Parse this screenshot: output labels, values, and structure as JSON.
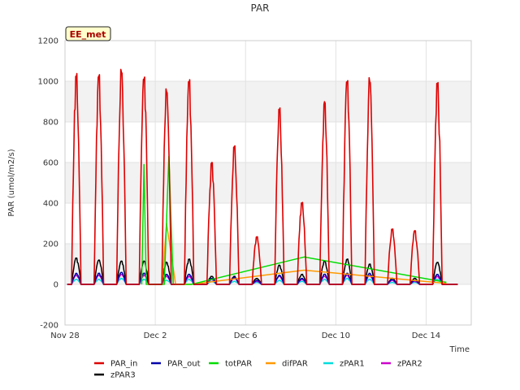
{
  "chart_data": {
    "type": "line",
    "title": "PAR",
    "xlabel": "Time",
    "ylabel": "PAR (umol/m2/s)",
    "station_badge": "EE_met",
    "xlim": [
      0,
      18
    ],
    "ylim": [
      -200,
      1200
    ],
    "x_units": "days since Nov 28",
    "x_ticks": [
      {
        "value": 0,
        "label": "Nov 28"
      },
      {
        "value": 4,
        "label": "Dec 2"
      },
      {
        "value": 8,
        "label": "Dec 6"
      },
      {
        "value": 12,
        "label": "Dec 10"
      },
      {
        "value": 16,
        "label": "Dec 14"
      }
    ],
    "y_ticks": [
      -200,
      0,
      200,
      400,
      600,
      800,
      1000,
      1200
    ],
    "grid": true,
    "legend": "bottom",
    "series": [
      {
        "name": "PAR_in",
        "color": "#dd0000",
        "kind": "daily",
        "days": [
          0.5,
          1.5,
          2.5,
          3.5,
          4.5,
          5.5,
          6.5,
          7.5,
          8.5,
          9.5,
          10.5,
          11.5,
          12.5,
          13.5,
          14.5,
          15.5,
          16.5
        ],
        "peaks": [
          1040,
          1045,
          1065,
          1030,
          970,
          1025,
          605,
          685,
          235,
          870,
          405,
          900,
          1020,
          1020,
          275,
          270,
          1005
        ]
      },
      {
        "name": "PAR_out",
        "color": "#0000aa",
        "kind": "daily",
        "days": [
          0.5,
          1.5,
          2.5,
          3.5,
          4.5,
          5.5,
          6.5,
          7.5,
          8.5,
          9.5,
          10.5,
          11.5,
          12.5,
          13.5,
          14.5,
          15.5,
          16.5
        ],
        "peaks": [
          55,
          55,
          60,
          55,
          50,
          50,
          30,
          35,
          20,
          45,
          30,
          50,
          55,
          55,
          25,
          20,
          50
        ]
      },
      {
        "name": "totPAR",
        "color": "#00dd00",
        "kind": "polyline",
        "x": [
          3.4,
          3.5,
          3.6,
          3.9,
          4.4,
          4.6,
          4.8,
          5.6,
          10.6,
          16.9
        ],
        "y": [
          0,
          590,
          0,
          0,
          0,
          630,
          0,
          0,
          135,
          10
        ]
      },
      {
        "name": "difPAR",
        "color": "#ff9900",
        "kind": "polyline",
        "x": [
          4.3,
          4.5,
          4.7,
          4.9,
          5.6,
          10.6,
          16.9
        ],
        "y": [
          0,
          300,
          150,
          0,
          0,
          70,
          5
        ]
      },
      {
        "name": "zPAR1",
        "color": "#00dddd",
        "kind": "daily",
        "days": [
          0.5,
          1.5,
          2.5,
          3.5,
          4.5,
          5.5,
          6.5,
          7.5,
          8.5,
          9.5,
          10.5,
          11.5,
          12.5,
          13.5,
          14.5,
          15.5,
          16.5
        ],
        "peaks": [
          25,
          25,
          30,
          25,
          20,
          25,
          15,
          15,
          10,
          20,
          15,
          25,
          30,
          25,
          10,
          10,
          25
        ]
      },
      {
        "name": "zPAR2",
        "color": "#cc00cc",
        "kind": "daily",
        "days": [
          0.5,
          1.5,
          2.5,
          3.5,
          4.5,
          5.5,
          6.5,
          7.5,
          8.5,
          9.5,
          10.5,
          11.5,
          12.5,
          13.5,
          14.5,
          15.5,
          16.5
        ],
        "peaks": [
          45,
          45,
          50,
          45,
          40,
          40,
          25,
          30,
          15,
          40,
          25,
          40,
          45,
          45,
          20,
          15,
          40
        ]
      },
      {
        "name": "zPAR3",
        "color": "#000000",
        "kind": "daily",
        "days": [
          0.5,
          1.5,
          2.5,
          3.5,
          4.5,
          5.5,
          6.5,
          7.5,
          8.5,
          9.5,
          10.5,
          11.5,
          12.5,
          13.5,
          14.5,
          15.5,
          16.5
        ],
        "peaks": [
          130,
          120,
          115,
          115,
          110,
          125,
          40,
          40,
          30,
          95,
          50,
          115,
          125,
          100,
          30,
          30,
          110
        ]
      }
    ]
  }
}
